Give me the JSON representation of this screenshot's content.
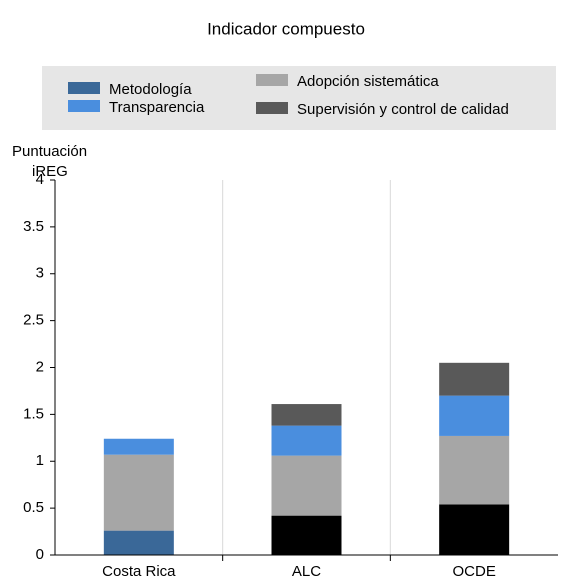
{
  "chart_data": {
    "type": "stacked_bar",
    "title": "Indicador compuesto",
    "ylabel": [
      "Puntuación",
      "iREG"
    ],
    "categories": [
      "Costa Rica",
      "ALC",
      "OCDE"
    ],
    "series": [
      {
        "name": "Metodología",
        "color": "#3a6898",
        "colors": [
          "#3a6898",
          "#000000",
          "#000000"
        ],
        "values": [
          0.26,
          0.42,
          0.54
        ]
      },
      {
        "name": "Transparencia",
        "color": "#4a8ede",
        "values": [
          0.17,
          0.32,
          0.43
        ]
      },
      {
        "name": "Adopción sistemática",
        "color": "#a6a6a6",
        "values": [
          0.81,
          0.64,
          0.73
        ]
      },
      {
        "name": "Supervisión y control de calidad",
        "color": "#595959",
        "values": [
          0,
          0.23,
          0.35
        ]
      }
    ],
    "stack_order": [
      0,
      2,
      1,
      3
    ],
    "ylim": [
      0,
      4
    ],
    "yticks": [
      0,
      0.5,
      1,
      1.5,
      2,
      2.5,
      3,
      3.5,
      4
    ],
    "grid": true
  }
}
